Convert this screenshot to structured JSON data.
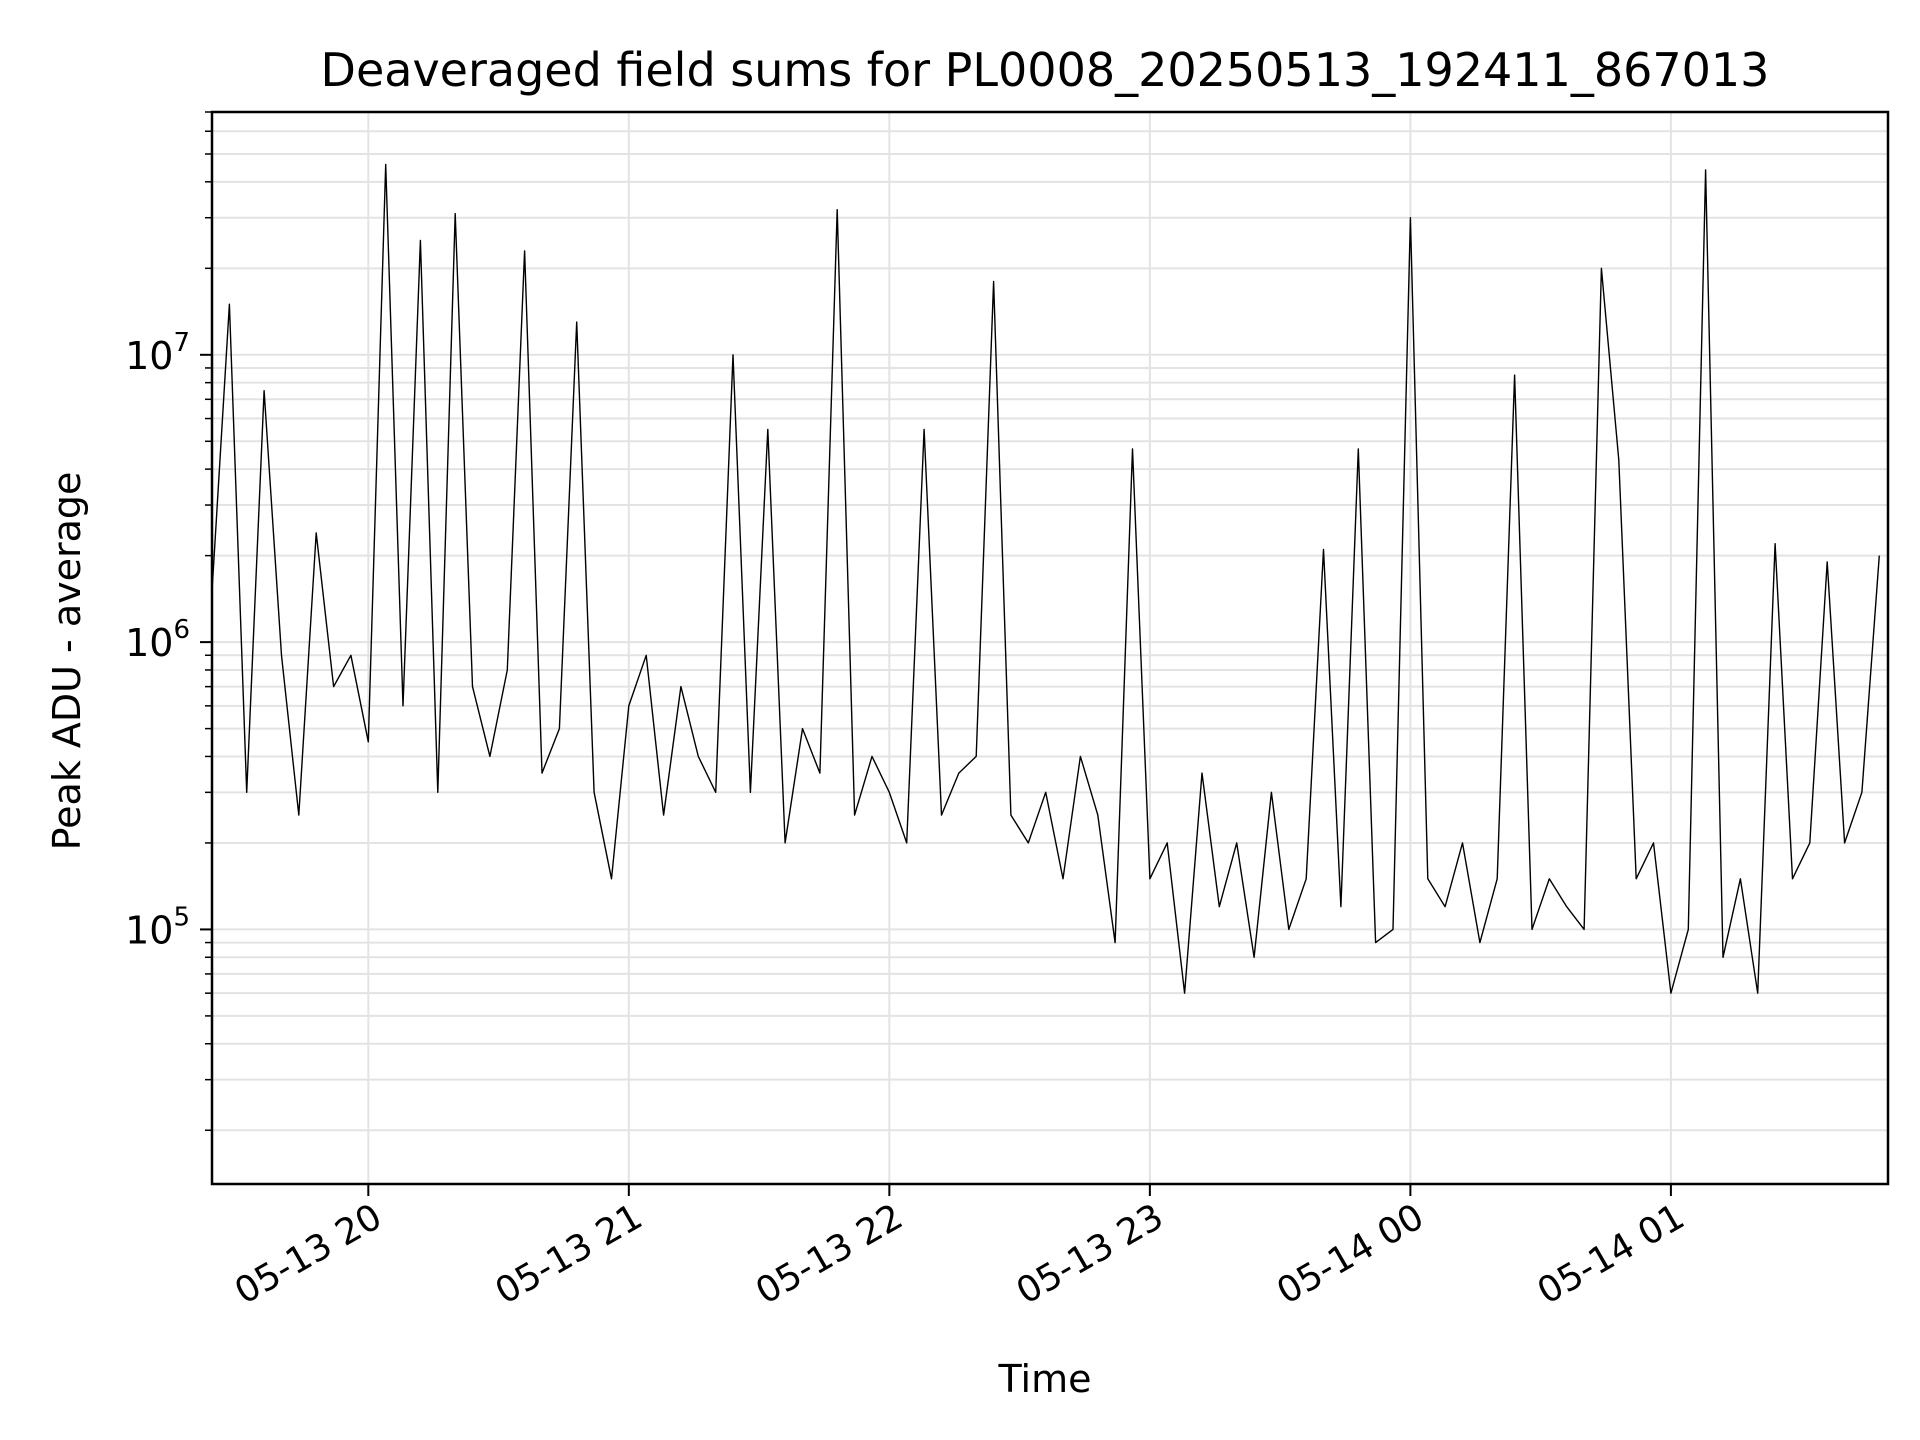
{
  "chart_data": {
    "type": "line",
    "title": "Deaveraged field sums for PL0008_20250513_192411_867013",
    "xlabel": "Time",
    "ylabel": "Peak ADU - average",
    "yscale": "log",
    "xlim": [
      "2025-05-13 19:24",
      "2025-05-14 01:50"
    ],
    "ylim": [
      13000,
      70000000
    ],
    "grid": true,
    "line_color": "#000000",
    "x_ticks": [
      {
        "t": "2025-05-13 20:00",
        "label": "05-13 20"
      },
      {
        "t": "2025-05-13 21:00",
        "label": "05-13 21"
      },
      {
        "t": "2025-05-13 22:00",
        "label": "05-13 22"
      },
      {
        "t": "2025-05-13 23:00",
        "label": "05-13 23"
      },
      {
        "t": "2025-05-14 00:00",
        "label": "05-14 00"
      },
      {
        "t": "2025-05-14 01:00",
        "label": "05-14 01"
      }
    ],
    "y_ticks": [
      {
        "value": 100000,
        "base": "10",
        "exp": "5"
      },
      {
        "value": 1000000,
        "base": "10",
        "exp": "6"
      },
      {
        "value": 10000000,
        "base": "10",
        "exp": "7"
      }
    ],
    "series": [
      {
        "x": [
          "2025-05-13 19:24",
          "2025-05-13 19:28",
          "2025-05-13 19:32",
          "2025-05-13 19:36",
          "2025-05-13 19:40",
          "2025-05-13 19:44",
          "2025-05-13 19:48",
          "2025-05-13 19:52",
          "2025-05-13 19:56",
          "2025-05-13 20:00",
          "2025-05-13 20:04",
          "2025-05-13 20:08",
          "2025-05-13 20:12",
          "2025-05-13 20:16",
          "2025-05-13 20:20",
          "2025-05-13 20:24",
          "2025-05-13 20:28",
          "2025-05-13 20:32",
          "2025-05-13 20:36",
          "2025-05-13 20:40",
          "2025-05-13 20:44",
          "2025-05-13 20:48",
          "2025-05-13 20:52",
          "2025-05-13 20:56",
          "2025-05-13 21:00",
          "2025-05-13 21:04",
          "2025-05-13 21:08",
          "2025-05-13 21:12",
          "2025-05-13 21:16",
          "2025-05-13 21:20",
          "2025-05-13 21:24",
          "2025-05-13 21:28",
          "2025-05-13 21:32",
          "2025-05-13 21:36",
          "2025-05-13 21:40",
          "2025-05-13 21:44",
          "2025-05-13 21:48",
          "2025-05-13 21:52",
          "2025-05-13 21:56",
          "2025-05-13 22:00",
          "2025-05-13 22:04",
          "2025-05-13 22:08",
          "2025-05-13 22:12",
          "2025-05-13 22:16",
          "2025-05-13 22:20",
          "2025-05-13 22:24",
          "2025-05-13 22:28",
          "2025-05-13 22:32",
          "2025-05-13 22:36",
          "2025-05-13 22:40",
          "2025-05-13 22:44",
          "2025-05-13 22:48",
          "2025-05-13 22:52",
          "2025-05-13 22:56",
          "2025-05-13 23:00",
          "2025-05-13 23:04",
          "2025-05-13 23:08",
          "2025-05-13 23:12",
          "2025-05-13 23:16",
          "2025-05-13 23:20",
          "2025-05-13 23:24",
          "2025-05-13 23:28",
          "2025-05-13 23:32",
          "2025-05-13 23:36",
          "2025-05-13 23:40",
          "2025-05-13 23:44",
          "2025-05-13 23:48",
          "2025-05-13 23:52",
          "2025-05-13 23:56",
          "2025-05-14 00:00",
          "2025-05-14 00:04",
          "2025-05-14 00:08",
          "2025-05-14 00:12",
          "2025-05-14 00:16",
          "2025-05-14 00:20",
          "2025-05-14 00:24",
          "2025-05-14 00:28",
          "2025-05-14 00:32",
          "2025-05-14 00:36",
          "2025-05-14 00:40",
          "2025-05-14 00:44",
          "2025-05-14 00:48",
          "2025-05-14 00:52",
          "2025-05-14 00:56",
          "2025-05-14 01:00",
          "2025-05-14 01:04",
          "2025-05-14 01:08",
          "2025-05-14 01:12",
          "2025-05-14 01:16",
          "2025-05-14 01:20",
          "2025-05-14 01:24",
          "2025-05-14 01:28",
          "2025-05-14 01:32",
          "2025-05-14 01:36",
          "2025-05-14 01:40",
          "2025-05-14 01:44",
          "2025-05-14 01:48"
        ],
        "y": [
          1500000,
          15000000,
          300000,
          7500000,
          900000,
          250000,
          2400000,
          700000,
          900000,
          450000,
          46000000,
          600000,
          25000000,
          300000,
          31000000,
          700000,
          400000,
          800000,
          23000000,
          350000,
          500000,
          13000000,
          300000,
          150000,
          600000,
          900000,
          250000,
          700000,
          400000,
          300000,
          10000000,
          300000,
          5500000,
          200000,
          500000,
          350000,
          32000000,
          250000,
          400000,
          300000,
          200000,
          5500000,
          250000,
          350000,
          400000,
          18000000,
          250000,
          200000,
          300000,
          150000,
          400000,
          250000,
          90000,
          4700000,
          150000,
          200000,
          60000,
          350000,
          120000,
          200000,
          80000,
          300000,
          100000,
          150000,
          2100000,
          120000,
          4700000,
          90000,
          100000,
          30000000,
          150000,
          120000,
          200000,
          90000,
          150000,
          8500000,
          100000,
          150000,
          120000,
          100000,
          20000000,
          4300000,
          150000,
          200000,
          60000,
          100000,
          44000000,
          80000,
          150000,
          60000,
          2200000,
          150000,
          200000,
          1900000,
          200000,
          300000,
          2000000
        ]
      }
    ]
  }
}
